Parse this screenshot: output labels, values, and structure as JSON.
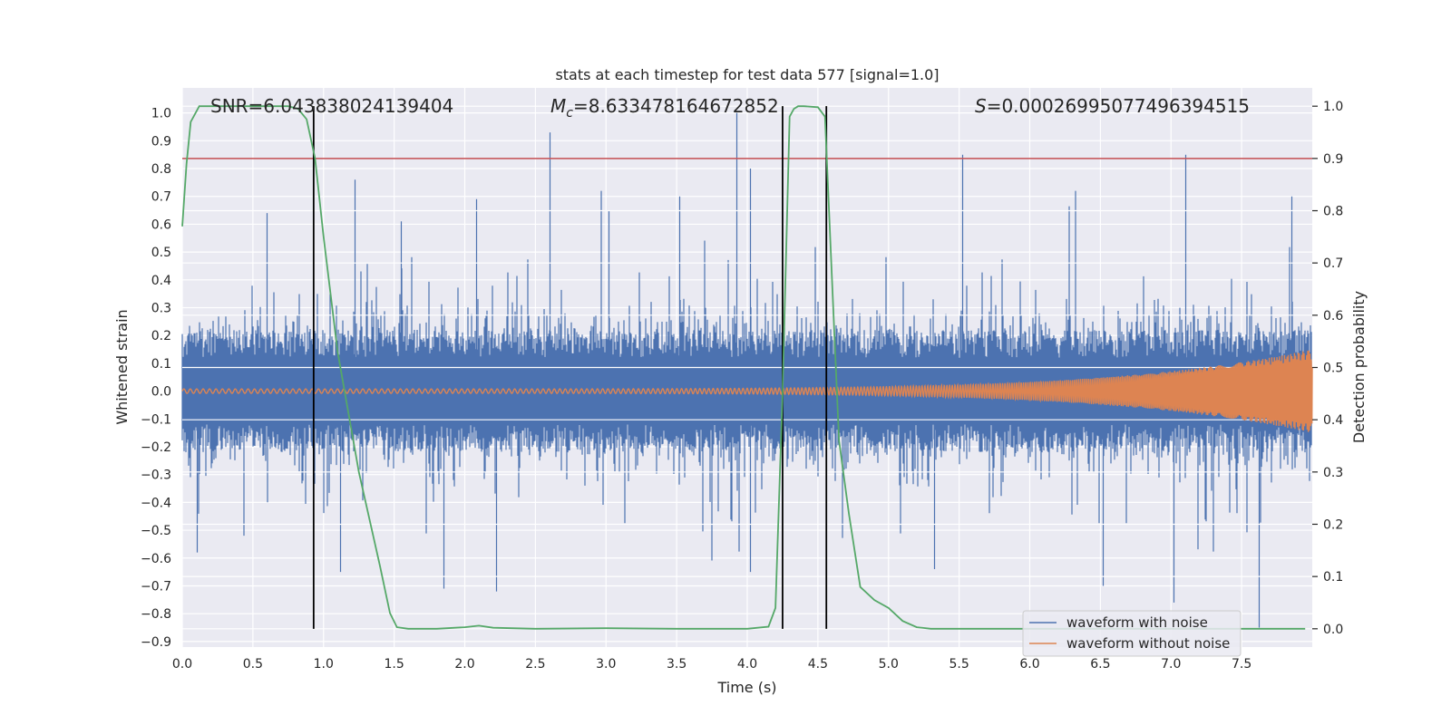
{
  "chart_data": {
    "type": "line",
    "title": "stats at each timestep for test data 577 [signal=1.0]",
    "xlabel": "Time (s)",
    "ylabel": "Whitened strain",
    "y2label": "Detection probability",
    "xlim": [
      0.0,
      8.0
    ],
    "ylim": [
      -0.92,
      1.09
    ],
    "y2lim": [
      -0.035,
      1.035
    ],
    "x_ticks": [
      0.0,
      0.5,
      1.0,
      1.5,
      2.0,
      2.5,
      3.0,
      3.5,
      4.0,
      4.5,
      5.0,
      5.5,
      6.0,
      6.5,
      7.0,
      7.5
    ],
    "x_tick_labels": [
      "0.0",
      "0.5",
      "1.0",
      "1.5",
      "2.0",
      "2.5",
      "3.0",
      "3.5",
      "4.0",
      "4.5",
      "5.0",
      "5.5",
      "6.0",
      "6.5",
      "7.0",
      "7.5"
    ],
    "y_ticks": [
      1.0,
      0.9,
      0.8,
      0.7,
      0.6,
      0.5,
      0.4,
      0.3,
      0.2,
      0.1,
      0.0,
      -0.1,
      -0.2,
      -0.3,
      -0.4,
      -0.5,
      -0.6,
      -0.7,
      -0.8,
      -0.9
    ],
    "y_tick_labels": [
      "1.0",
      "0.9",
      "0.8",
      "0.7",
      "0.6",
      "0.5",
      "0.4",
      "0.3",
      "0.2",
      "0.1",
      "0.0",
      "−0.1",
      "−0.2",
      "−0.3",
      "−0.4",
      "−0.5",
      "−0.6",
      "−0.7",
      "−0.8",
      "−0.9"
    ],
    "y2_ticks": [
      1.0,
      0.9,
      0.8,
      0.7,
      0.6,
      0.5,
      0.4,
      0.3,
      0.2,
      0.1,
      0.0
    ],
    "y2_tick_labels": [
      "1.0",
      "0.9",
      "0.8",
      "0.7",
      "0.6",
      "0.5",
      "0.4",
      "0.3",
      "0.2",
      "0.1",
      "0.0"
    ],
    "grid": true,
    "legend_position": "bottom-right",
    "annotations": {
      "snr": "SNR=6.043838024139404",
      "mc_symbol": "M",
      "mc_subscript": "c",
      "mc_value": "=8.633478164672852",
      "s_symbol": "S",
      "s_value": "=0.00026995077496394515"
    },
    "threshold": {
      "axis": "y2",
      "value": 0.9
    },
    "vertical_markers": [
      0.93,
      4.25,
      4.56
    ],
    "series": [
      {
        "name": "waveform with noise",
        "axis": "y",
        "kind": "noise",
        "sample_rate": 2048,
        "typical_amplitude": 0.2,
        "max_value": 1.0,
        "min_value": -0.85,
        "peaks": [
          {
            "x": 2.6,
            "y": 0.93
          },
          {
            "x": 3.92,
            "y": 1.0
          },
          {
            "x": 5.52,
            "y": 0.85
          },
          {
            "x": 7.1,
            "y": 0.85
          },
          {
            "x": 1.22,
            "y": 0.76
          },
          {
            "x": 0.6,
            "y": 0.64
          },
          {
            "x": 1.55,
            "y": 0.61
          },
          {
            "x": 2.08,
            "y": 0.69
          },
          {
            "x": 3.02,
            "y": 0.65
          },
          {
            "x": 3.52,
            "y": 0.7
          },
          {
            "x": 4.02,
            "y": 0.8
          },
          {
            "x": 7.85,
            "y": 0.7
          },
          {
            "x": 7.62,
            "y": -0.85
          },
          {
            "x": 7.02,
            "y": -0.76
          },
          {
            "x": 6.52,
            "y": -0.7
          },
          {
            "x": 5.32,
            "y": -0.64
          },
          {
            "x": 4.02,
            "y": -0.65
          },
          {
            "x": 2.22,
            "y": -0.72
          },
          {
            "x": 1.85,
            "y": -0.71
          },
          {
            "x": 1.12,
            "y": -0.65
          },
          {
            "x": 0.1,
            "y": -0.58
          }
        ],
        "color": "#4c72b0"
      },
      {
        "name": "waveform without noise",
        "axis": "y",
        "kind": "chirp",
        "start_amplitude": 0.008,
        "end_amplitude": 0.15,
        "start_frequency": 22,
        "end_frequency": 120,
        "color": "#dd8452"
      },
      {
        "axis": "y2",
        "kind": "probability",
        "x": [
          0.0,
          0.03,
          0.06,
          0.12,
          0.2,
          0.4,
          0.6,
          0.75,
          0.82,
          0.88,
          0.94,
          1.0,
          1.1,
          1.25,
          1.4,
          1.47,
          1.52,
          1.6,
          1.8,
          2.0,
          2.1,
          2.2,
          2.5,
          3.0,
          3.5,
          4.0,
          4.15,
          4.2,
          4.25,
          4.3,
          4.33,
          4.36,
          4.4,
          4.5,
          4.55,
          4.6,
          4.65,
          4.72,
          4.8,
          4.9,
          5.0,
          5.1,
          5.2,
          5.3,
          5.5,
          6.0,
          7.0,
          7.95
        ],
        "y": [
          0.77,
          0.89,
          0.97,
          1.0,
          1.0,
          1.0,
          1.0,
          1.0,
          0.995,
          0.975,
          0.9,
          0.75,
          0.53,
          0.3,
          0.12,
          0.03,
          0.003,
          0.0,
          0.0,
          0.003,
          0.006,
          0.002,
          0.0,
          0.001,
          0.0,
          0.0,
          0.004,
          0.04,
          0.45,
          0.98,
          0.995,
          1.0,
          1.0,
          0.998,
          0.98,
          0.67,
          0.36,
          0.22,
          0.08,
          0.055,
          0.04,
          0.015,
          0.003,
          0.0,
          0.0,
          0.0,
          0.0,
          0.0
        ],
        "color": "#55a868"
      }
    ],
    "colors": {
      "plot_background": "#eaeaf2",
      "grid": "#ffffff",
      "threshold": "#c44e52",
      "marker": "#000000"
    }
  }
}
